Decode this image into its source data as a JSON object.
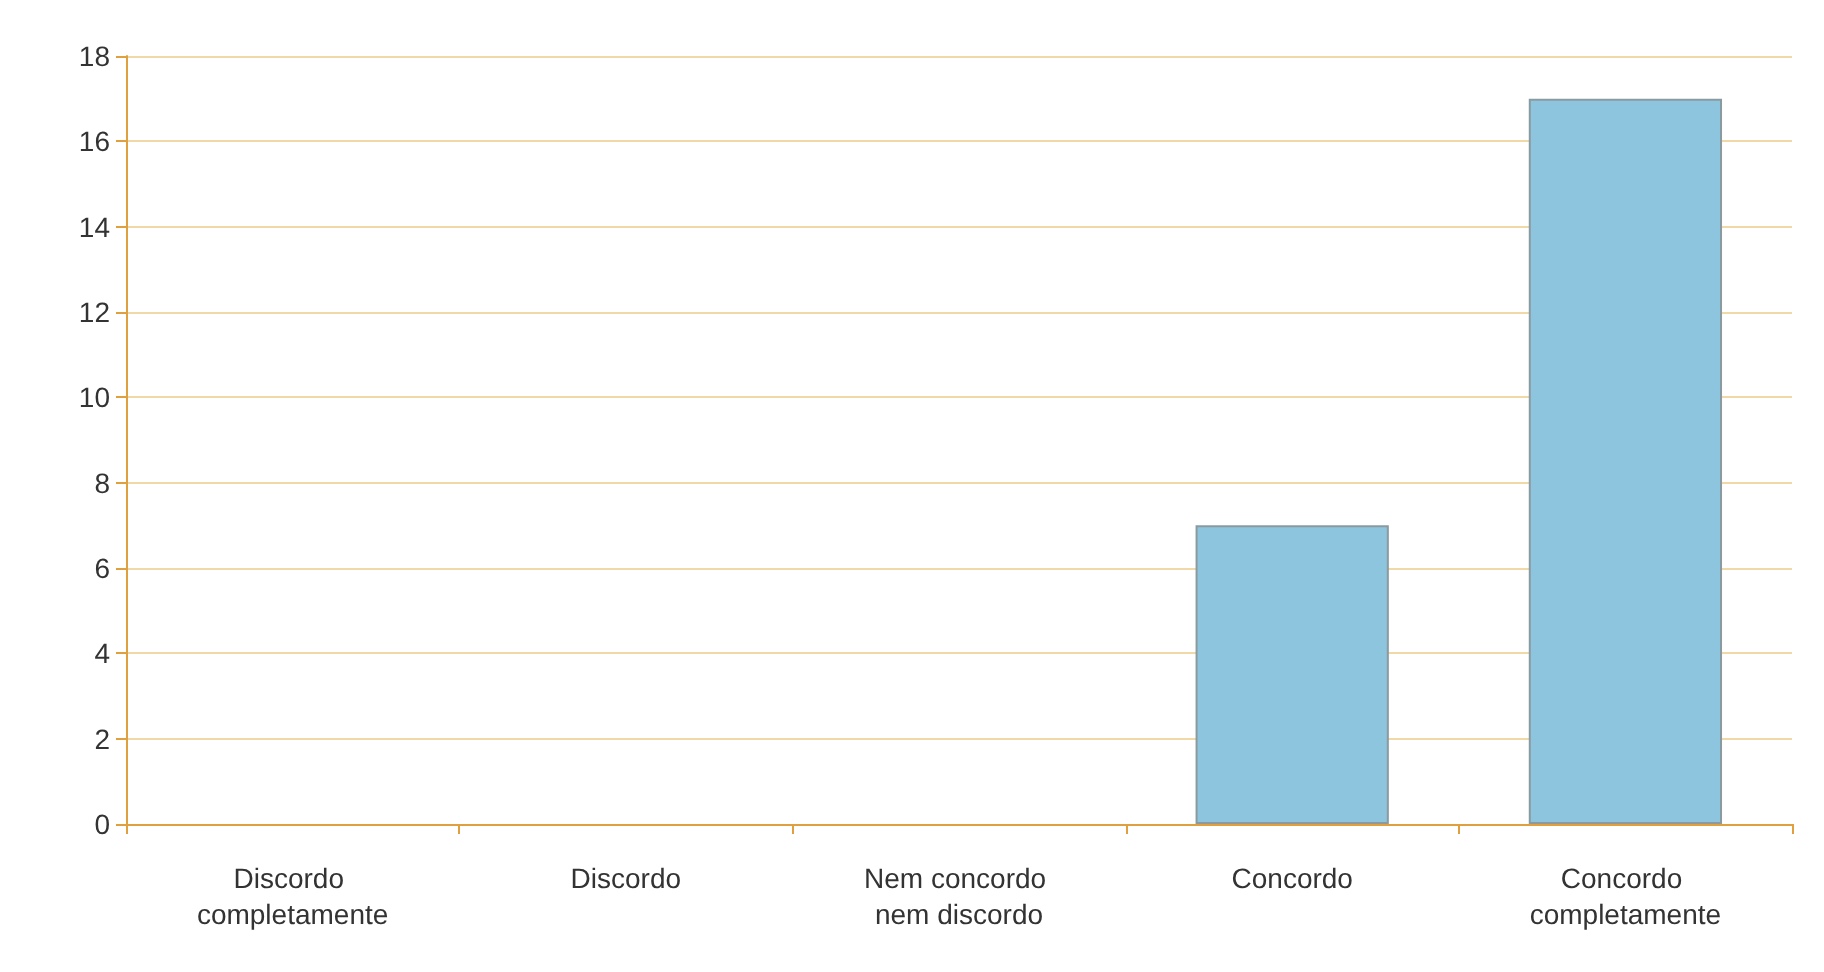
{
  "chart_data": {
    "type": "bar",
    "categories": [
      "Discordo completamente",
      "Discordo",
      "Nem concordo nem discordo",
      "Concordo",
      "Concordo completamente"
    ],
    "values": [
      0,
      0,
      0,
      7,
      17
    ],
    "color": "#8dc4de",
    "ylim": [
      0,
      18
    ],
    "yticks": [
      0,
      2,
      4,
      6,
      8,
      10,
      12,
      14,
      16,
      18
    ],
    "grid": "y"
  }
}
